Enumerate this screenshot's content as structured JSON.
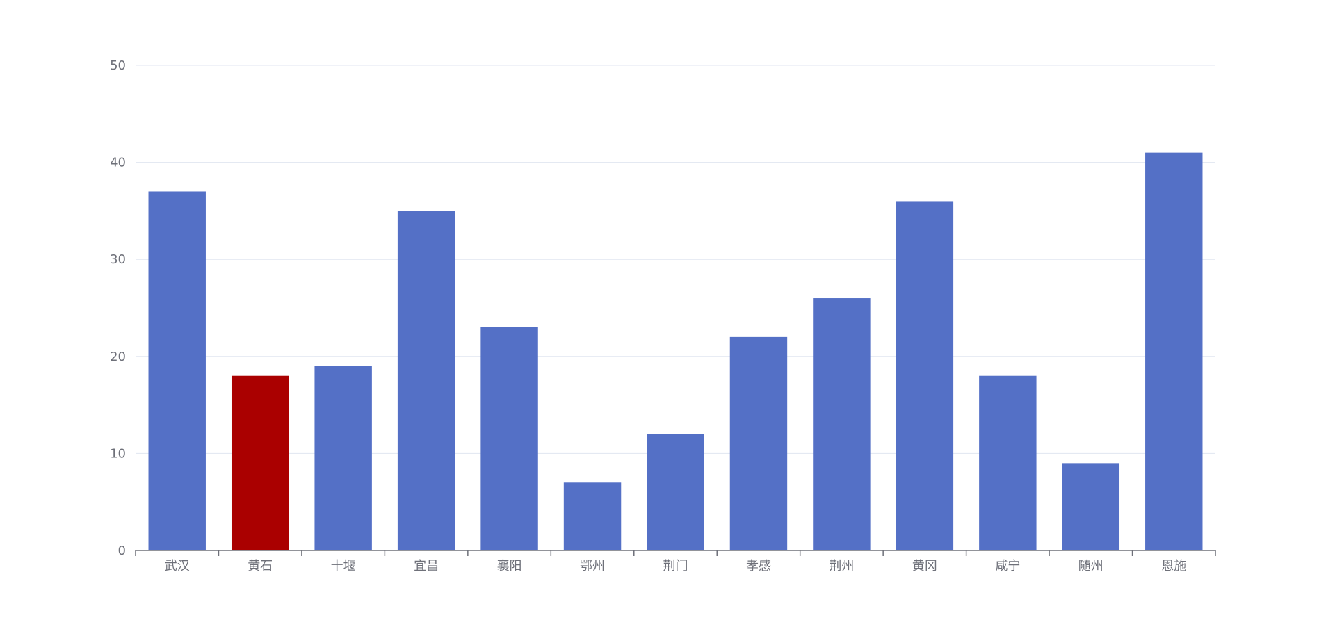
{
  "chart_data": {
    "type": "bar",
    "categories": [
      "武汉",
      "黄石",
      "十堰",
      "宜昌",
      "襄阳",
      "鄂州",
      "荆门",
      "孝感",
      "荆州",
      "黄冈",
      "咸宁",
      "随州",
      "恩施"
    ],
    "values": [
      37,
      18,
      19,
      35,
      23,
      7,
      12,
      22,
      26,
      36,
      18,
      9,
      41
    ],
    "highlight_index": 1,
    "ylim": [
      0,
      50
    ],
    "yticks": [
      0,
      10,
      20,
      30,
      40,
      50
    ],
    "grid": true,
    "title": "",
    "xlabel": "",
    "ylabel": "",
    "colors": {
      "bar": "#5470c6",
      "highlight": "#aa0000",
      "grid": "#e0e6f1",
      "axis": "#6e7079",
      "text": "#6e7079"
    }
  }
}
